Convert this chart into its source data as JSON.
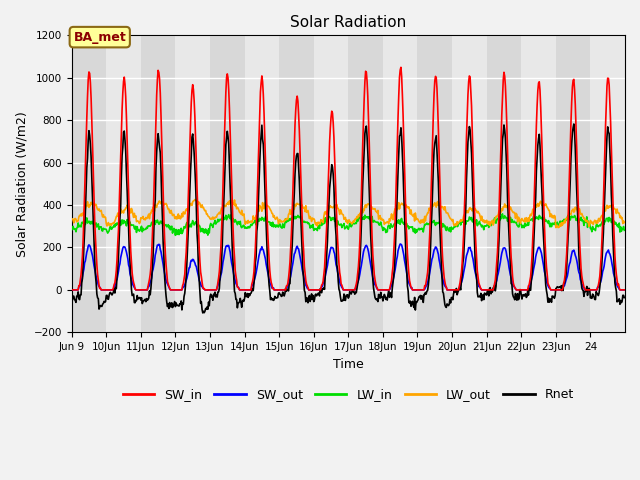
{
  "title": "Solar Radiation",
  "ylabel": "Solar Radiation (W/m2)",
  "xlabel": "Time",
  "annotation": "BA_met",
  "ylim": [
    -200,
    1200
  ],
  "yticks": [
    -200,
    0,
    200,
    400,
    600,
    800,
    1000,
    1200
  ],
  "xlim": [
    8,
    24
  ],
  "series": {
    "SW_in": {
      "color": "#ff0000",
      "lw": 1.2
    },
    "SW_out": {
      "color": "#0000ff",
      "lw": 1.2
    },
    "LW_in": {
      "color": "#00dd00",
      "lw": 1.2
    },
    "LW_out": {
      "color": "#ffa500",
      "lw": 1.2
    },
    "Rnet": {
      "color": "#000000",
      "lw": 1.2
    }
  },
  "fig_bg": "#f2f2f2",
  "plot_bg": "#e8e8e8",
  "band_dark": "#d8d8d8",
  "band_light": "#e8e8e8",
  "grid_color": "#ffffff",
  "xtick_labels": [
    "Jun 9",
    "10Jun",
    "11Jun",
    "12Jun",
    "13Jun",
    "14Jun",
    "15Jun",
    "16Jun",
    "17Jun",
    "18Jun",
    "19Jun",
    "20Jun",
    "21Jun",
    "22Jun",
    "23Jun",
    "24"
  ],
  "xtick_positions": [
    8,
    9,
    10,
    11,
    12,
    13,
    14,
    15,
    16,
    17,
    18,
    19,
    20,
    21,
    22,
    23
  ],
  "title_fontsize": 11,
  "label_fontsize": 9,
  "tick_fontsize": 7.5,
  "legend_fontsize": 9
}
